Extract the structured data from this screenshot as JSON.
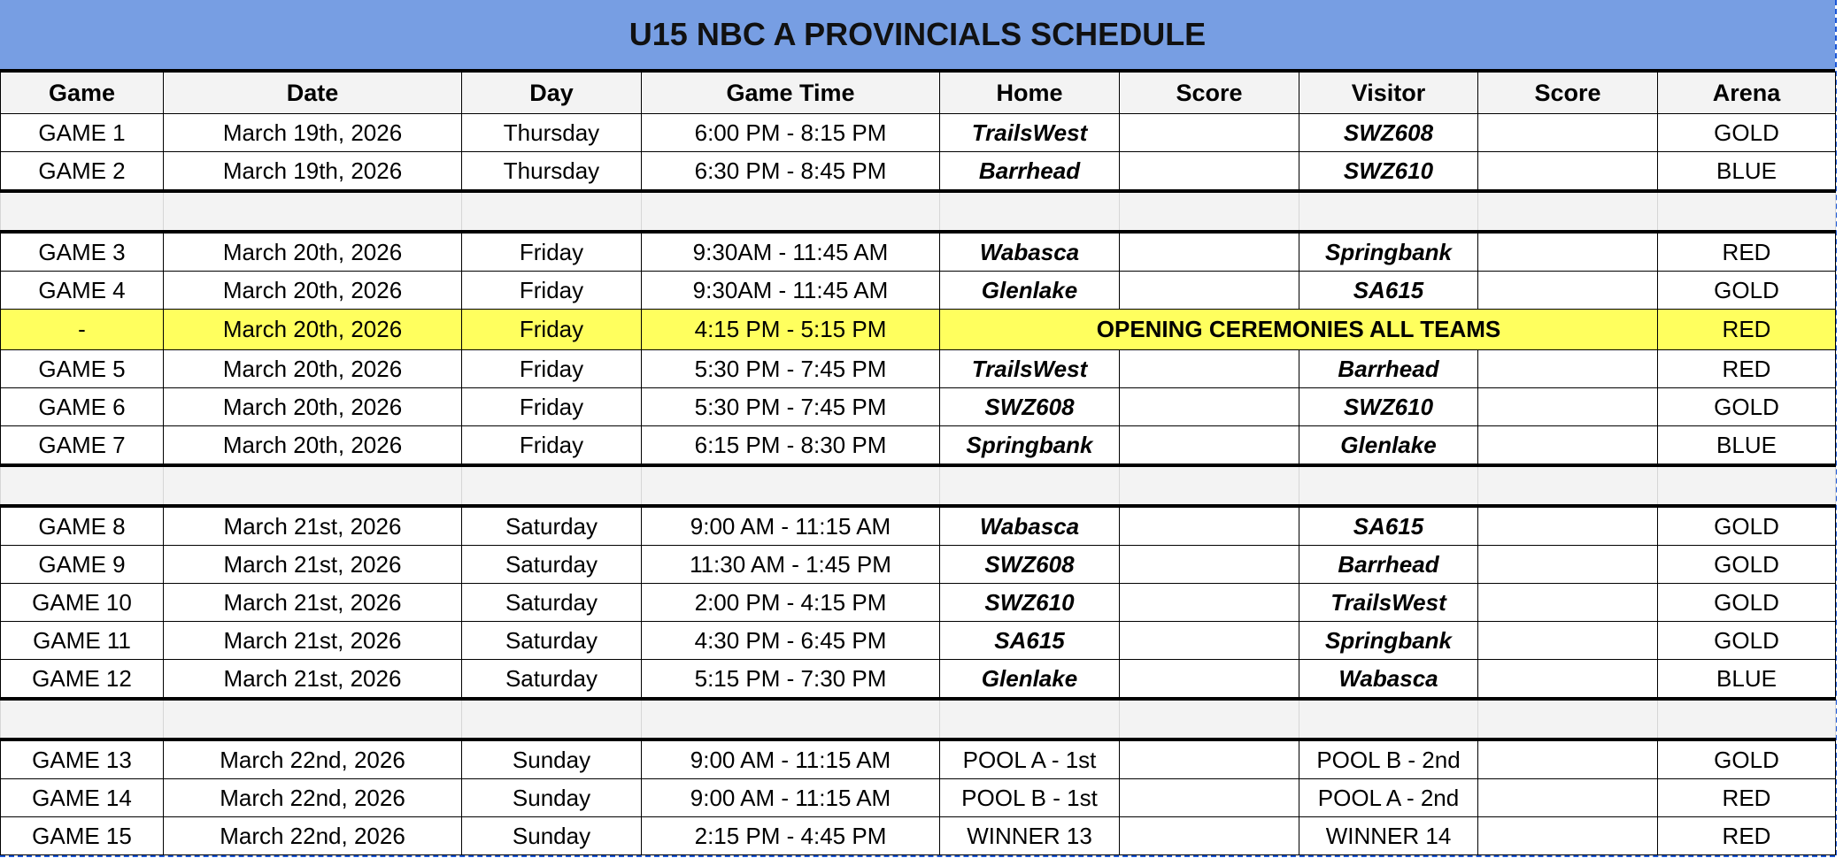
{
  "title": "U15 NBC A PROVINCIALS SCHEDULE",
  "columns": [
    "Game",
    "Date",
    "Day",
    "Game Time",
    "Home",
    "Score",
    "Visitor",
    "Score",
    "Arena"
  ],
  "colors": {
    "title_bg": "#779ee3",
    "highlight": "#ffff5e",
    "blank_row": "#f3f3f3"
  },
  "rows": [
    {
      "game": "GAME 1",
      "date": "March 19th, 2026",
      "day": "Thursday",
      "time": "6:00 PM - 8:15 PM",
      "home": "TrailsWest",
      "visitor": "SWZ608",
      "arena": "GOLD",
      "team_style": true
    },
    {
      "game": "GAME 2",
      "date": "March 19th, 2026",
      "day": "Thursday",
      "time": "6:30 PM - 8:45 PM",
      "home": "Barrhead",
      "visitor": "SWZ610",
      "arena": "BLUE",
      "team_style": true
    },
    {
      "blank": true
    },
    {
      "game": "GAME 3",
      "date": "March 20th, 2026",
      "day": "Friday",
      "time": "9:30AM - 11:45 AM",
      "home": "Wabasca",
      "visitor": "Springbank",
      "arena": "RED",
      "team_style": true
    },
    {
      "game": "GAME 4",
      "date": "March 20th, 2026",
      "day": "Friday",
      "time": "9:30AM - 11:45 AM",
      "home": "Glenlake",
      "visitor": "SA615",
      "arena": "GOLD",
      "team_style": true
    },
    {
      "game": "-",
      "date": "March 20th, 2026",
      "day": "Friday",
      "time": "4:15 PM - 5:15 PM",
      "event": "OPENING CEREMONIES ALL TEAMS",
      "arena": "RED"
    },
    {
      "game": "GAME 5",
      "date": "March 20th, 2026",
      "day": "Friday",
      "time": "5:30 PM - 7:45 PM",
      "home": "TrailsWest",
      "visitor": "Barrhead",
      "arena": "RED",
      "team_style": true
    },
    {
      "game": "GAME 6",
      "date": "March 20th, 2026",
      "day": "Friday",
      "time": "5:30 PM - 7:45 PM",
      "home": "SWZ608",
      "visitor": "SWZ610",
      "arena": "GOLD",
      "team_style": true
    },
    {
      "game": "GAME 7",
      "date": "March 20th, 2026",
      "day": "Friday",
      "time": "6:15 PM - 8:30 PM",
      "home": "Springbank",
      "visitor": "Glenlake",
      "arena": "BLUE",
      "team_style": true
    },
    {
      "blank": true
    },
    {
      "game": "GAME 8",
      "date": "March 21st, 2026",
      "day": "Saturday",
      "time": "9:00 AM - 11:15 AM",
      "home": "Wabasca",
      "visitor": "SA615",
      "arena": "GOLD",
      "team_style": true
    },
    {
      "game": "GAME 9",
      "date": "March 21st, 2026",
      "day": "Saturday",
      "time": "11:30 AM - 1:45 PM",
      "home": "SWZ608",
      "visitor": "Barrhead",
      "arena": "GOLD",
      "team_style": true
    },
    {
      "game": "GAME 10",
      "date": "March 21st, 2026",
      "day": "Saturday",
      "time": "2:00 PM - 4:15 PM",
      "home": "SWZ610",
      "visitor": "TrailsWest",
      "arena": "GOLD",
      "team_style": true
    },
    {
      "game": "GAME 11",
      "date": "March 21st, 2026",
      "day": "Saturday",
      "time": "4:30 PM - 6:45 PM",
      "home": "SA615",
      "visitor": "Springbank",
      "arena": "GOLD",
      "team_style": true
    },
    {
      "game": "GAME 12",
      "date": "March 21st, 2026",
      "day": "Saturday",
      "time": "5:15 PM - 7:30 PM",
      "home": "Glenlake",
      "visitor": "Wabasca",
      "arena": "BLUE",
      "team_style": true
    },
    {
      "blank": true
    },
    {
      "game": "GAME 13",
      "date": "March 22nd, 2026",
      "day": "Sunday",
      "time": "9:00 AM - 11:15 AM",
      "home": "POOL A - 1st",
      "visitor": "POOL B - 2nd",
      "arena": "GOLD",
      "team_style": false
    },
    {
      "game": "GAME 14",
      "date": "March 22nd, 2026",
      "day": "Sunday",
      "time": "9:00 AM - 11:15 AM",
      "home": "POOL B - 1st",
      "visitor": "POOL A - 2nd",
      "arena": "RED",
      "team_style": false
    },
    {
      "game": "GAME 15",
      "date": "March 22nd, 2026",
      "day": "Sunday",
      "time": "2:15 PM - 4:45 PM",
      "home": "WINNER 13",
      "visitor": "WINNER 14",
      "arena": "RED",
      "team_style": false
    }
  ]
}
